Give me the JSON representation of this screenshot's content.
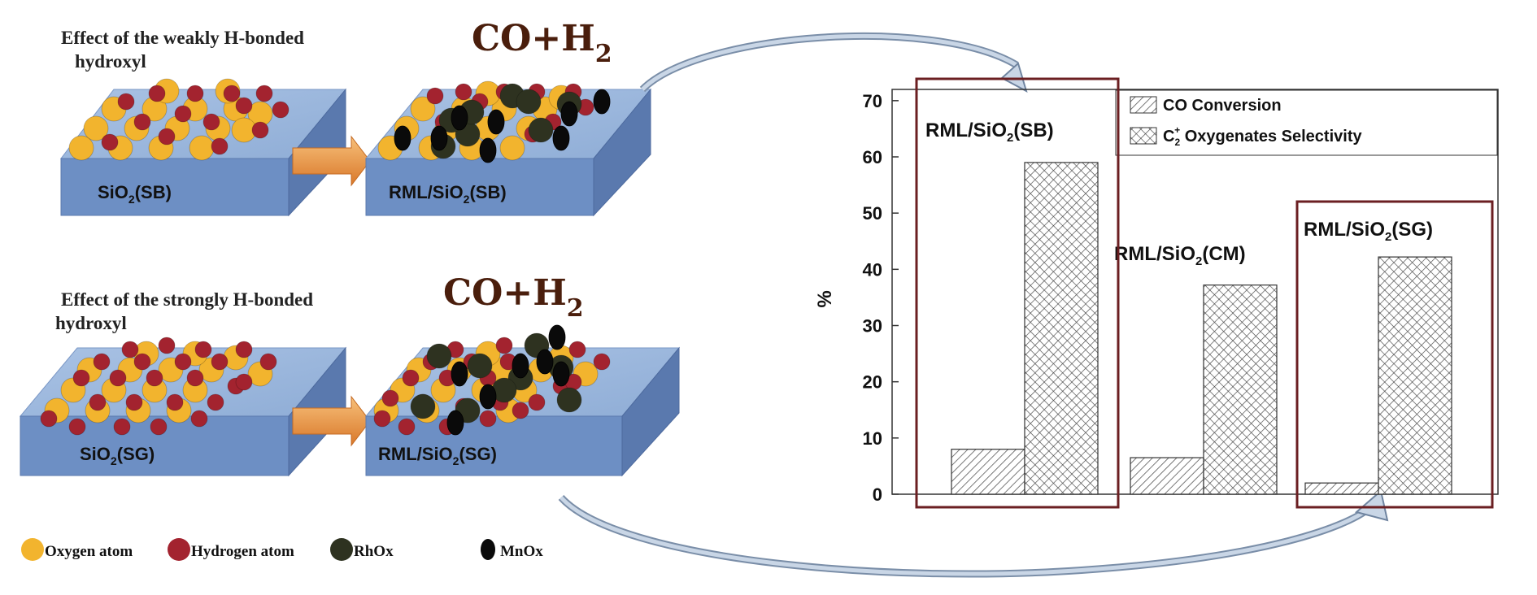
{
  "left_panel": {
    "top": {
      "title_line1": "Effect of the weakly H-bonded",
      "title_line2": "hydroxyl",
      "gas_main": "CO+H",
      "gas_sub": "2",
      "support_prefix": "SiO",
      "support_sub": "2",
      "support_suffix": "(SB)",
      "catalyst_prefix": "RML/SiO",
      "catalyst_sub": "2",
      "catalyst_suffix": "(SB)"
    },
    "bottom": {
      "title_line1": "Effect of the strongly H-bonded",
      "title_line2": "hydroxyl",
      "gas_main": "CO+H",
      "gas_sub": "2",
      "support_prefix": "SiO",
      "support_sub": "2",
      "support_suffix": "(SG)",
      "catalyst_prefix": "RML/SiO",
      "catalyst_sub": "2",
      "catalyst_suffix": "(SG)"
    },
    "legend": [
      {
        "label": "Oxygen atom",
        "color": "#F2B42E"
      },
      {
        "label": "Hydrogen atom",
        "color": "#A3232F"
      },
      {
        "label": "RhOx",
        "color": "#2E3220"
      },
      {
        "label": "MnOx",
        "color": "#0A0A0A"
      }
    ],
    "colors": {
      "slab_top": "#9DB8DC",
      "slab_front": "#6D8FC4",
      "slab_side": "#5A79AE",
      "arrow": "#E8913A",
      "gas_text": "#4A1E0C",
      "box_border": "#6B1F22"
    }
  },
  "chart_data": {
    "type": "bar",
    "categories": [
      "RML/SiO2(SB)",
      "RML/SiO2(CM)",
      "RML/SiO2(SG)"
    ],
    "category_labels": [
      {
        "prefix": "RML/SiO",
        "sub": "2",
        "suffix": "(SB)"
      },
      {
        "prefix": "RML/SiO",
        "sub": "2",
        "suffix": "(CM)"
      },
      {
        "prefix": "RML/SiO",
        "sub": "2",
        "suffix": "(SG)"
      }
    ],
    "series": [
      {
        "name": "CO Conversion",
        "values": [
          8.0,
          6.5,
          2.0
        ],
        "pattern": "hatch"
      },
      {
        "name": "C2+ Oxygenates Selectivity",
        "values": [
          59.0,
          37.2,
          42.2
        ],
        "pattern": "crosshatch"
      }
    ],
    "legend_labels": {
      "co": "CO Conversion",
      "sel_prefix": "C",
      "sel_sub": "2",
      "sel_sup": "+",
      "sel_suffix": " Oxygenates Selectivity"
    },
    "ylabel": "%",
    "ylim": [
      0,
      72
    ],
    "yticks": [
      "0",
      "10",
      "20",
      "30",
      "40",
      "50",
      "60",
      "70"
    ],
    "ytick_values": [
      0,
      10,
      20,
      30,
      40,
      50,
      60,
      70
    ],
    "legend_position": "top-right",
    "grid": false
  }
}
